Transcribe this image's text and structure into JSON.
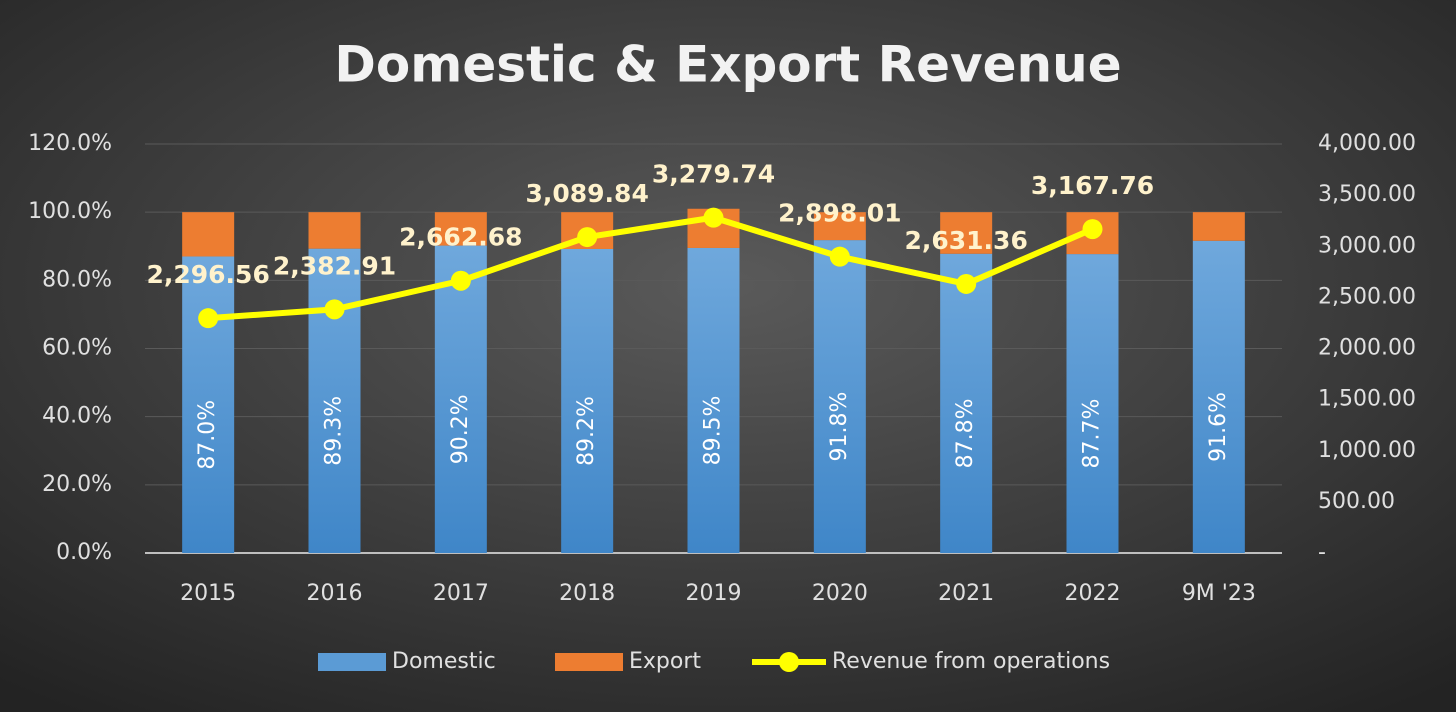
{
  "chart_data": {
    "type": "bar_line",
    "title": "Domestic & Export Revenue",
    "categories": [
      "2015",
      "2016",
      "2017",
      "2018",
      "2019",
      "2020",
      "2021",
      "2022",
      "9M '23"
    ],
    "series": [
      {
        "name": "Domestic",
        "color": "#5b9bd5",
        "values": [
          87.0,
          89.3,
          90.2,
          89.2,
          89.5,
          91.8,
          87.8,
          87.7,
          91.6
        ],
        "value_labels": [
          "87.0%",
          "89.3%",
          "90.2%",
          "89.2%",
          "89.5%",
          "91.8%",
          "87.8%",
          "87.7%",
          "91.6%"
        ]
      },
      {
        "name": "Export",
        "color": "#ed7d31",
        "values": [
          13.0,
          10.7,
          9.8,
          10.8,
          11.5,
          8.2,
          12.2,
          12.3,
          8.4
        ]
      },
      {
        "name": "Revenue from operations",
        "color": "#ffff00",
        "axis": "y2",
        "values": [
          2296.56,
          2382.91,
          2662.68,
          3089.84,
          3279.74,
          2898.01,
          2631.36,
          3167.76,
          null
        ],
        "value_labels": [
          "2,296.56",
          "2,382.91",
          "2,662.68",
          "3,089.84",
          "3,279.74",
          "2,898.01",
          "2,631.36",
          "3,167.76",
          null
        ]
      }
    ],
    "ylim": [
      0,
      120
    ],
    "yticks": [
      {
        "value": 0,
        "label": "0.0%"
      },
      {
        "value": 20,
        "label": "20.0%"
      },
      {
        "value": 40,
        "label": "40.0%"
      },
      {
        "value": 60,
        "label": "60.0%"
      },
      {
        "value": 80,
        "label": "80.0%"
      },
      {
        "value": 100,
        "label": "100.0%"
      },
      {
        "value": 120,
        "label": "120.0%"
      }
    ],
    "y2lim": [
      0,
      4000
    ],
    "y2ticks": [
      {
        "value": 0,
        "label": "-"
      },
      {
        "value": 500,
        "label": "500.00"
      },
      {
        "value": 1000,
        "label": "1,000.00"
      },
      {
        "value": 1500,
        "label": "1,500.00"
      },
      {
        "value": 2000,
        "label": "2,000.00"
      },
      {
        "value": 2500,
        "label": "2,500.00"
      },
      {
        "value": 3000,
        "label": "3,000.00"
      },
      {
        "value": 3500,
        "label": "3,500.00"
      },
      {
        "value": 4000,
        "label": "4,000.00"
      }
    ],
    "grid": true,
    "legend": "bottom"
  }
}
